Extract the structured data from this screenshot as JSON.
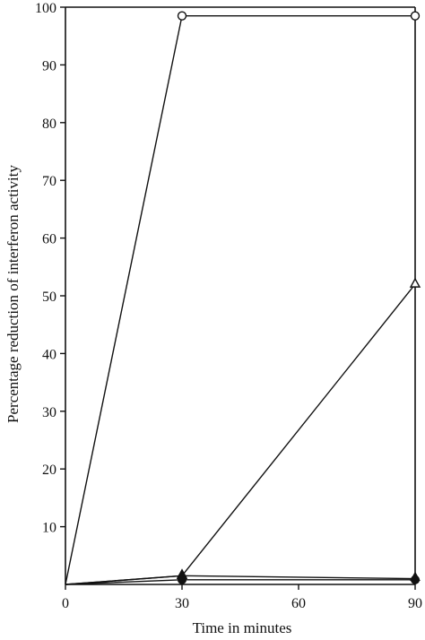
{
  "chart_data": {
    "type": "line",
    "title": "",
    "xlabel": "Time in minutes",
    "ylabel": "Percentage reduction of interferon activity",
    "xlim": [
      0,
      90
    ],
    "ylim": [
      0,
      100
    ],
    "x_ticks": [
      0,
      30,
      60,
      90
    ],
    "y_ticks": [
      10,
      20,
      30,
      40,
      50,
      60,
      70,
      80,
      90,
      100
    ],
    "grid": false,
    "series": [
      {
        "marker": "open-circle",
        "x": [
          0,
          30,
          90
        ],
        "y": [
          0,
          98.5,
          98.5
        ]
      },
      {
        "marker": "open-triangle",
        "x": [
          0,
          30,
          90
        ],
        "y": [
          0,
          1.5,
          52
        ]
      },
      {
        "marker": "filled-triangle",
        "x": [
          0,
          30,
          90
        ],
        "y": [
          0,
          1.5,
          1
        ]
      },
      {
        "marker": "filled-circle",
        "x": [
          0,
          30,
          90
        ],
        "y": [
          0,
          0.8,
          0.8
        ]
      }
    ]
  }
}
